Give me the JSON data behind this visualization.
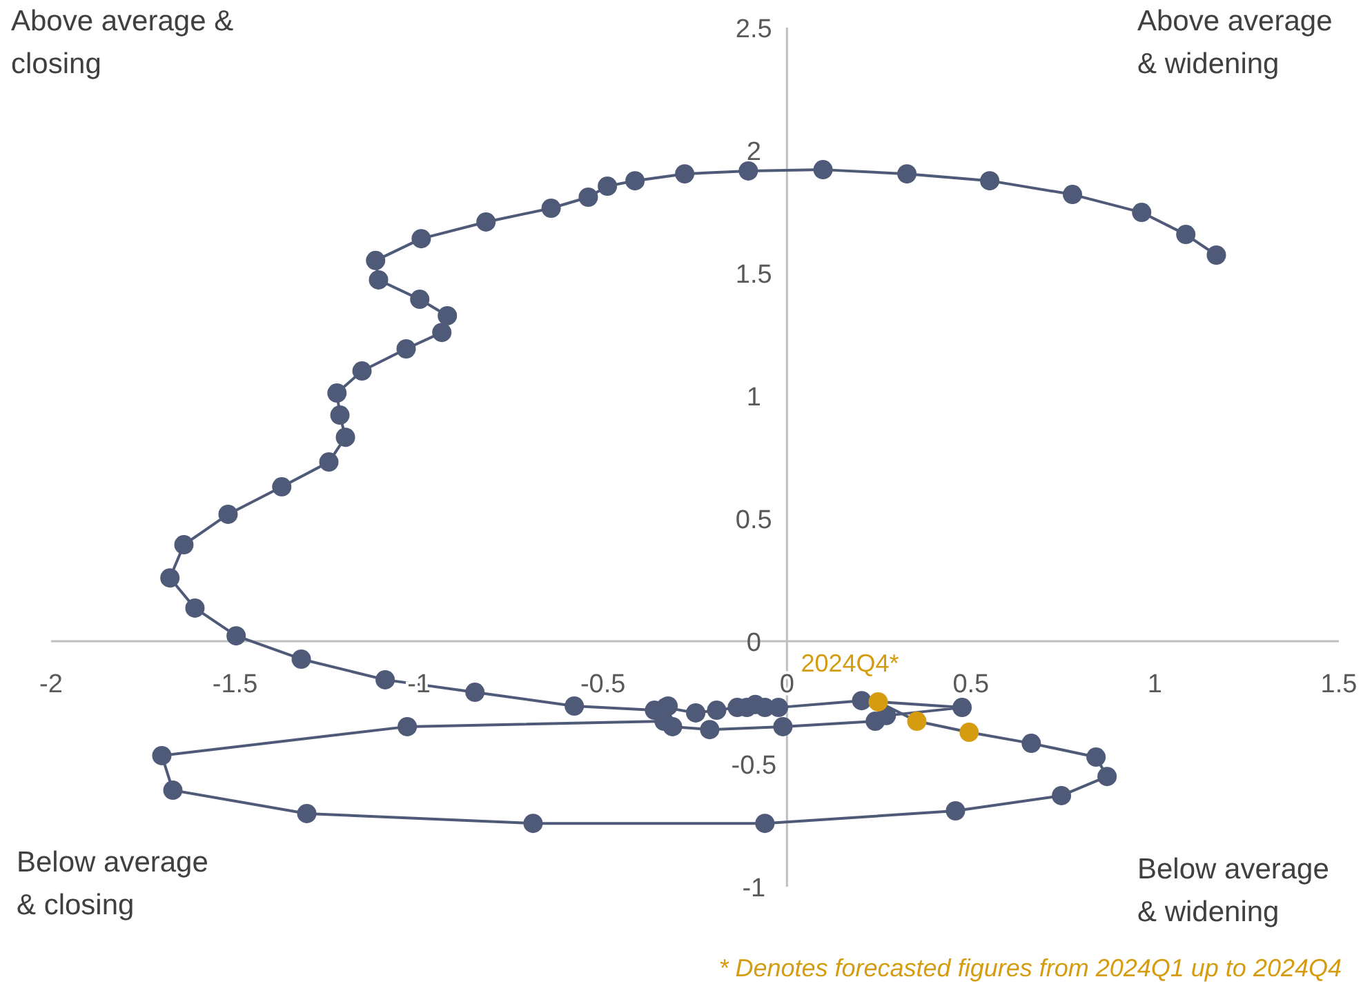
{
  "chart_data": {
    "type": "line",
    "marker": "circle",
    "grid": false,
    "xlim": [
      -2,
      1.5
    ],
    "ylim": [
      -1,
      2.5
    ],
    "xticks": [
      -2,
      -1.5,
      -1,
      -0.5,
      0,
      0.5,
      1,
      1.5
    ],
    "yticks": [
      -1,
      -0.5,
      0,
      0.5,
      1,
      1.5,
      2,
      2.5
    ],
    "series": [
      {
        "color": "#4f5a78",
        "x": [
          1.167,
          1.084,
          0.964,
          0.776,
          0.551,
          0.326,
          0.098,
          -0.105,
          -0.278,
          -0.413,
          -0.488,
          -0.54,
          -0.641,
          -0.818,
          -0.994,
          -1.118,
          -1.11,
          -0.998,
          -0.923,
          -0.938,
          -1.035,
          -1.155,
          -1.223,
          -1.215,
          -1.2,
          -1.245,
          -1.373,
          -1.519,
          -1.639,
          -1.677,
          -1.609,
          -1.497,
          -1.32,
          -1.092,
          -0.848,
          -0.578,
          -0.36,
          -0.323,
          -0.33,
          -0.248,
          -0.191,
          -0.135,
          -0.109,
          -0.086,
          -0.06,
          -0.023,
          0.203,
          0.476,
          0.27,
          0.24,
          -0.011,
          -0.21,
          -0.311,
          -0.334,
          -1.032,
          -1.699,
          -1.669,
          -1.305,
          -0.69,
          -0.06,
          0.458,
          0.746,
          0.87,
          0.84,
          0.664
        ],
        "values": [
          1.573,
          1.657,
          1.747,
          1.82,
          1.876,
          1.904,
          1.921,
          1.916,
          1.904,
          1.876,
          1.854,
          1.809,
          1.764,
          1.708,
          1.64,
          1.551,
          1.472,
          1.393,
          1.326,
          1.258,
          1.191,
          1.101,
          1.011,
          0.921,
          0.831,
          0.73,
          0.629,
          0.517,
          0.393,
          0.258,
          0.135,
          0.022,
          -0.073,
          -0.157,
          -0.208,
          -0.264,
          -0.281,
          -0.264,
          -0.27,
          -0.292,
          -0.281,
          -0.27,
          -0.27,
          -0.258,
          -0.27,
          -0.27,
          -0.242,
          -0.27,
          -0.303,
          -0.326,
          -0.348,
          -0.36,
          -0.348,
          -0.326,
          -0.348,
          -0.466,
          -0.607,
          -0.702,
          -0.742,
          -0.742,
          -0.691,
          -0.629,
          -0.551,
          -0.472,
          -0.416
        ]
      },
      {
        "color": "#d69c10",
        "type": "scatter",
        "x": [
          0.495,
          0.353,
          0.248
        ],
        "values": [
          -0.371,
          -0.326,
          -0.247
        ]
      }
    ],
    "annotations": [
      "Above average & closing",
      "Above average & widening",
      "Below average & closing",
      "Below average & widening",
      {
        "text": "2024Q4*",
        "x": 0.248,
        "y": -0.247
      },
      "* Denotes forecasted figures from 2024Q1 up to 2024Q4"
    ]
  }
}
